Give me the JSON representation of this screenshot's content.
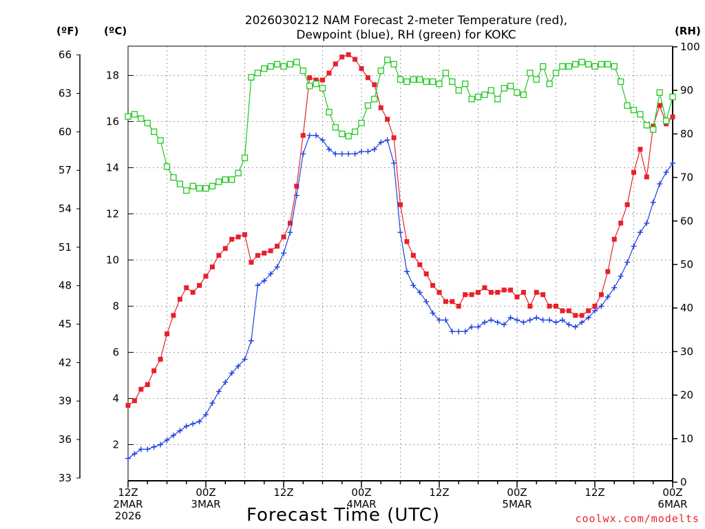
{
  "header": {
    "title_line1": "2026030212 NAM Forecast 2-meter Temperature (red),",
    "title_line2": "Dewpoint (blue), RH (green) for KOKC"
  },
  "units": {
    "fahrenheit": "(ºF)",
    "celsius": "(ºC)",
    "rh": "(RH)"
  },
  "x_axis_title": "Forecast Time (UTC)",
  "credit": "coolwx.com/modelts",
  "x_labels": [
    {
      "line1": "12Z",
      "line2": "2MAR",
      "line3": "2026"
    },
    {
      "line1": "00Z",
      "line2": "3MAR",
      "line3": ""
    },
    {
      "line1": "12Z",
      "line2": "",
      "line3": ""
    },
    {
      "line1": "00Z",
      "line2": "4MAR",
      "line3": ""
    },
    {
      "line1": "12Z",
      "line2": "",
      "line3": ""
    },
    {
      "line1": "00Z",
      "line2": "5MAR",
      "line3": ""
    },
    {
      "line1": "12Z",
      "line2": "",
      "line3": ""
    },
    {
      "line1": "00Z",
      "line2": "6MAR",
      "line3": ""
    }
  ],
  "colors": {
    "temperature": "#e8202a",
    "dewpoint": "#1c3fe0",
    "rh": "#1ec81e",
    "grid": "#9a9a9a"
  },
  "chart_data": {
    "type": "line",
    "title": "2026030212 NAM Forecast 2-meter Temperature (red), Dewpoint (blue), RH (green) for KOKC",
    "xlabel": "Forecast Time (UTC)",
    "x_unit": "forecast hours from 2026-03-02 12Z",
    "xlim": [
      0,
      84
    ],
    "x_ticks": [
      0,
      12,
      24,
      36,
      48,
      60,
      72,
      84
    ],
    "y_left_celsius": {
      "label": "(ºC)",
      "lim": [
        0,
        19
      ],
      "ticks": [
        2,
        4,
        6,
        8,
        10,
        12,
        14,
        16,
        18
      ]
    },
    "y_left_fahrenheit": {
      "label": "(ºF)",
      "lim": [
        32,
        66.2
      ],
      "ticks": [
        33,
        36,
        39,
        42,
        45,
        48,
        51,
        54,
        57,
        60,
        63,
        66
      ]
    },
    "y_right_rh": {
      "label": "(RH)",
      "lim": [
        0,
        100
      ],
      "ticks": [
        0,
        10,
        20,
        30,
        40,
        50,
        60,
        70,
        80,
        90,
        100
      ]
    },
    "grid": true,
    "series": [
      {
        "name": "Temperature",
        "axis": "celsius",
        "marker": "filled-square",
        "x": [
          0,
          1,
          2,
          3,
          4,
          5,
          6,
          7,
          8,
          9,
          10,
          11,
          12,
          13,
          14,
          15,
          16,
          17,
          18,
          19,
          20,
          21,
          22,
          23,
          24,
          25,
          26,
          27,
          28,
          29,
          30,
          31,
          32,
          33,
          34,
          35,
          36,
          37,
          38,
          39,
          40,
          41,
          42,
          43,
          44,
          45,
          46,
          47,
          48,
          49,
          50,
          51,
          52,
          53,
          54,
          55,
          56,
          57,
          58,
          59,
          60,
          61,
          62,
          63,
          64,
          65,
          66,
          67,
          68,
          69,
          70,
          71,
          72,
          73,
          74,
          75,
          76,
          77,
          78,
          79,
          80,
          81,
          82,
          83,
          84
        ],
        "values": [
          3.7,
          3.9,
          4.4,
          4.6,
          5.2,
          5.7,
          6.8,
          7.6,
          8.3,
          8.8,
          8.6,
          8.9,
          9.3,
          9.7,
          10.2,
          10.5,
          10.9,
          11,
          11.1,
          9.9,
          10.2,
          10.3,
          10.4,
          10.6,
          11,
          11.6,
          13.2,
          15.4,
          17.9,
          17.8,
          17.8,
          18.1,
          18.5,
          18.8,
          18.9,
          18.7,
          18.3,
          17.9,
          17.6,
          16.6,
          16.1,
          15.3,
          12.4,
          10.8,
          10.2,
          9.8,
          9.4,
          8.9,
          8.6,
          8.2,
          8.2,
          8,
          8.5,
          8.5,
          8.6,
          8.8,
          8.6,
          8.6,
          8.7,
          8.7,
          8.4,
          8.6,
          8,
          8.6,
          8.5,
          8,
          8,
          7.8,
          7.8,
          7.6,
          7.6,
          7.8,
          8,
          8.5,
          9.5,
          10.9,
          11.6,
          12.4,
          13.8,
          14.8,
          13.6,
          15.8,
          16.7,
          15.9,
          16.2
        ]
      },
      {
        "name": "Dewpoint",
        "axis": "celsius",
        "marker": "plus",
        "x": [
          0,
          1,
          2,
          3,
          4,
          5,
          6,
          7,
          8,
          9,
          10,
          11,
          12,
          13,
          14,
          15,
          16,
          17,
          18,
          19,
          20,
          21,
          22,
          23,
          24,
          25,
          26,
          27,
          28,
          29,
          30,
          31,
          32,
          33,
          34,
          35,
          36,
          37,
          38,
          39,
          40,
          41,
          42,
          43,
          44,
          45,
          46,
          47,
          48,
          49,
          50,
          51,
          52,
          53,
          54,
          55,
          56,
          57,
          58,
          59,
          60,
          61,
          62,
          63,
          64,
          65,
          66,
          67,
          68,
          69,
          70,
          71,
          72,
          73,
          74,
          75,
          76,
          77,
          78,
          79,
          80,
          81,
          82,
          83,
          84
        ],
        "values": [
          1.4,
          1.6,
          1.8,
          1.8,
          1.9,
          2,
          2.2,
          2.4,
          2.6,
          2.8,
          2.9,
          3,
          3.3,
          3.8,
          4.3,
          4.7,
          5.1,
          5.4,
          5.7,
          6.5,
          8.9,
          9.1,
          9.4,
          9.7,
          10.3,
          11.2,
          12.8,
          14.6,
          15.4,
          15.4,
          15.2,
          14.8,
          14.6,
          14.6,
          14.6,
          14.6,
          14.7,
          14.7,
          14.8,
          15.1,
          15.2,
          14.2,
          11.2,
          9.5,
          8.9,
          8.6,
          8.2,
          7.7,
          7.4,
          7.4,
          6.9,
          6.9,
          6.9,
          7.1,
          7.1,
          7.3,
          7.4,
          7.3,
          7.2,
          7.5,
          7.4,
          7.3,
          7.4,
          7.5,
          7.4,
          7.4,
          7.3,
          7.4,
          7.2,
          7.1,
          7.3,
          7.5,
          7.8,
          8,
          8.4,
          8.8,
          9.3,
          9.9,
          10.6,
          11.2,
          11.6,
          12.5,
          13.3,
          13.8,
          14.2
        ]
      },
      {
        "name": "RH",
        "axis": "rh",
        "marker": "open-square",
        "x": [
          0,
          1,
          2,
          3,
          4,
          5,
          6,
          7,
          8,
          9,
          10,
          11,
          12,
          13,
          14,
          15,
          16,
          17,
          18,
          19,
          20,
          21,
          22,
          23,
          24,
          25,
          26,
          27,
          28,
          29,
          30,
          31,
          32,
          33,
          34,
          35,
          36,
          37,
          38,
          39,
          40,
          41,
          42,
          43,
          44,
          45,
          46,
          47,
          48,
          49,
          50,
          51,
          52,
          53,
          54,
          55,
          56,
          57,
          58,
          59,
          60,
          61,
          62,
          63,
          64,
          65,
          66,
          67,
          68,
          69,
          70,
          71,
          72,
          73,
          74,
          75,
          76,
          77,
          78,
          79,
          80,
          81,
          82,
          83,
          84
        ],
        "values": [
          84,
          84.5,
          83.5,
          82.5,
          80.5,
          78.5,
          72.5,
          70,
          68.5,
          67,
          68,
          67.5,
          67.5,
          68,
          69,
          69.5,
          69.5,
          71,
          74.5,
          93,
          94,
          95,
          95.5,
          96,
          95.5,
          96,
          96.5,
          94.5,
          91,
          91.5,
          90.5,
          85,
          81.5,
          80,
          79.5,
          80.5,
          82.5,
          86.5,
          88,
          94.5,
          97,
          96,
          92.5,
          92,
          92.5,
          92.5,
          92,
          92,
          91.5,
          94,
          92,
          90,
          91.5,
          88,
          88.5,
          89,
          90,
          88,
          90.5,
          91,
          89.5,
          89,
          94,
          92.5,
          95.5,
          91.5,
          94,
          95.5,
          95.5,
          96,
          96.5,
          96,
          95.5,
          96,
          96,
          95.5,
          92,
          86.5,
          85.5,
          84.5,
          82,
          81,
          89.5,
          83,
          88.5
        ]
      }
    ]
  }
}
